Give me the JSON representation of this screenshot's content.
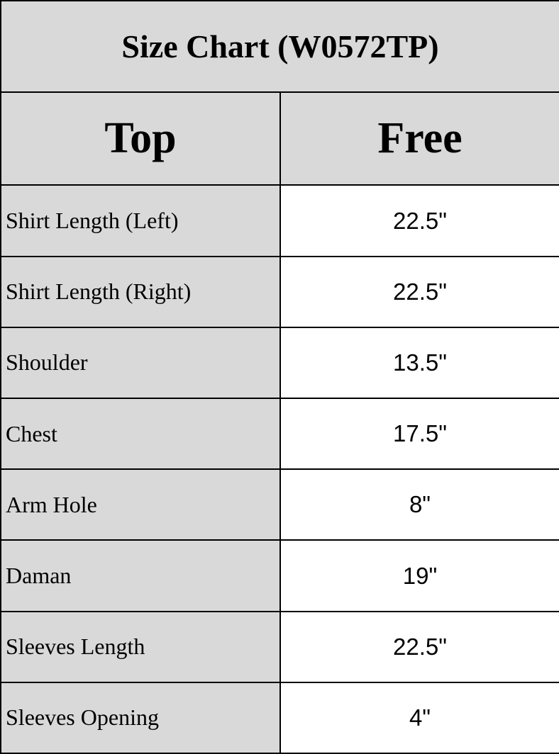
{
  "title": "Size Chart (W0572TP)",
  "table": {
    "header": {
      "col1": "Top",
      "col2": "Free"
    },
    "rows": [
      {
        "label": "Shirt Length (Left)",
        "value": "22.5\""
      },
      {
        "label": "Shirt Length (Right)",
        "value": "22.5\""
      },
      {
        "label": "Shoulder",
        "value": "13.5\""
      },
      {
        "label": "Chest",
        "value": "17.5\""
      },
      {
        "label": "Arm Hole",
        "value": "8\""
      },
      {
        "label": "Daman",
        "value": "19\""
      },
      {
        "label": "Sleeves Length",
        "value": "22.5\""
      },
      {
        "label": "Sleeves Opening",
        "value": "4\""
      }
    ]
  },
  "colors": {
    "header_bg": "#d9d9d9",
    "label_bg": "#d9d9d9",
    "value_bg": "#ffffff",
    "border": "#000000",
    "text": "#000000"
  },
  "chart_data": {
    "type": "table",
    "title": "Size Chart (W0572TP)",
    "columns": [
      "Top",
      "Free"
    ],
    "rows": [
      [
        "Shirt Length (Left)",
        "22.5\""
      ],
      [
        "Shirt Length (Right)",
        "22.5\""
      ],
      [
        "Shoulder",
        "13.5\""
      ],
      [
        "Chest",
        "17.5\""
      ],
      [
        "Arm Hole",
        "8\""
      ],
      [
        "Daman",
        "19\""
      ],
      [
        "Sleeves Length",
        "22.5\""
      ],
      [
        "Sleeves Opening",
        "4\""
      ]
    ]
  }
}
